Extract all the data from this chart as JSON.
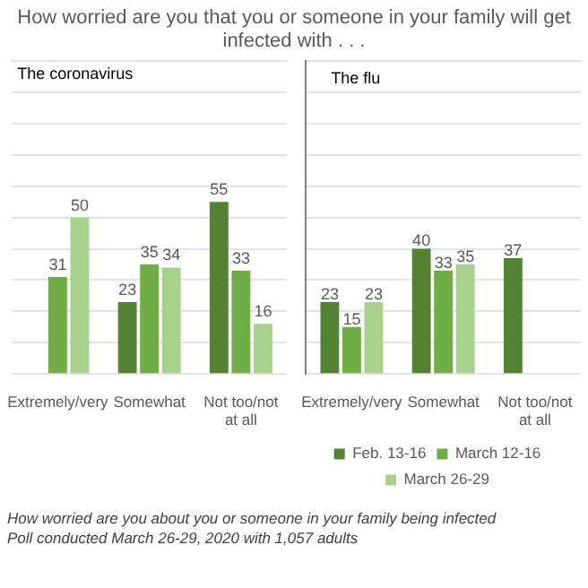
{
  "chart_data": [
    {
      "type": "bar",
      "title": "How worried are you that you or someone in your family will get infected with . . .",
      "subtitle": "The coronavirus",
      "categories": [
        "Extremely/very",
        "Somewhat",
        "Not too/not at all"
      ],
      "series": [
        {
          "color": "#548235",
          "values": [
            null,
            23,
            55
          ]
        },
        {
          "color": "#70ad47",
          "values": [
            31,
            35,
            33
          ]
        },
        {
          "color": "#a9d18e",
          "values": [
            50,
            34,
            16
          ]
        }
      ],
      "ylim": [
        0,
        100
      ],
      "yticks": [
        {
          "value": 0,
          "label": null
        },
        {
          "value": 10,
          "label": null
        },
        {
          "value": 20,
          "label": null
        },
        {
          "value": 30,
          "label": null
        },
        {
          "value": 40,
          "label": null
        },
        {
          "value": 50,
          "label": null
        },
        {
          "value": 60,
          "label": null
        },
        {
          "value": 70,
          "label": null
        },
        {
          "value": 80,
          "label": null
        },
        {
          "value": 90,
          "label": null
        }
      ],
      "grid": "y",
      "tick_labels": "x",
      "data_labels": true,
      "annotations": [
        "How worried are you about you or someone in your family being infected",
        "Poll conducted March 26-29, 2020 with 1,057 adults"
      ]
    },
    {
      "type": "bar",
      "subtitle": "The flu",
      "categories": [
        "Extremely/very",
        "Somewhat",
        "Not too/not at all"
      ],
      "series": [
        {
          "name": "Feb. 13-16",
          "color": "#548235",
          "values": [
            23,
            40,
            37
          ]
        },
        {
          "name": "March 12-16",
          "color": "#70ad47",
          "values": [
            15,
            33,
            null
          ]
        },
        {
          "name": "March 26-29",
          "color": "#a9d18e",
          "values": [
            23,
            35,
            null
          ]
        }
      ],
      "ylim": [
        0,
        100
      ],
      "yticks": [
        {
          "value": 0,
          "label": null
        },
        {
          "value": 10,
          "label": null
        },
        {
          "value": 20,
          "label": null
        },
        {
          "value": 30,
          "label": null
        },
        {
          "value": 40,
          "label": null
        },
        {
          "value": 50,
          "label": null
        },
        {
          "value": 60,
          "label": null
        },
        {
          "value": 70,
          "label": null
        },
        {
          "value": 80,
          "label": null
        },
        {
          "value": 90,
          "label": null
        }
      ],
      "grid": "y",
      "tick_labels": "x",
      "data_labels": true,
      "legend": "bottom"
    }
  ]
}
